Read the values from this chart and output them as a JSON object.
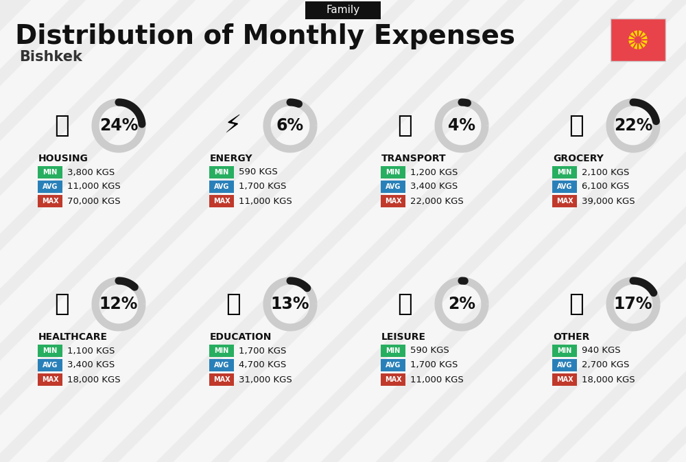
{
  "title": "Distribution of Monthly Expenses",
  "subtitle": "Bishkek",
  "tag": "Family",
  "bg_color": "#ececec",
  "stripe_color": "#ffffff",
  "categories": [
    {
      "name": "HOUSING",
      "pct": 24,
      "min": "3,800 KGS",
      "avg": "11,000 KGS",
      "max": "70,000 KGS"
    },
    {
      "name": "ENERGY",
      "pct": 6,
      "min": "590 KGS",
      "avg": "1,700 KGS",
      "max": "11,000 KGS"
    },
    {
      "name": "TRANSPORT",
      "pct": 4,
      "min": "1,200 KGS",
      "avg": "3,400 KGS",
      "max": "22,000 KGS"
    },
    {
      "name": "GROCERY",
      "pct": 22,
      "min": "2,100 KGS",
      "avg": "6,100 KGS",
      "max": "39,000 KGS"
    },
    {
      "name": "HEALTHCARE",
      "pct": 12,
      "min": "1,100 KGS",
      "avg": "3,400 KGS",
      "max": "18,000 KGS"
    },
    {
      "name": "EDUCATION",
      "pct": 13,
      "min": "1,700 KGS",
      "avg": "4,700 KGS",
      "max": "31,000 KGS"
    },
    {
      "name": "LEISURE",
      "pct": 2,
      "min": "590 KGS",
      "avg": "1,700 KGS",
      "max": "11,000 KGS"
    },
    {
      "name": "OTHER",
      "pct": 17,
      "min": "940 KGS",
      "avg": "2,700 KGS",
      "max": "18,000 KGS"
    }
  ],
  "color_min": "#27ae60",
  "color_avg": "#2980b9",
  "color_max": "#c0392b",
  "arc_color_filled": "#1a1a1a",
  "arc_color_empty": "#cccccc",
  "flag_color": "#e8424a",
  "title_fontsize": 28,
  "subtitle_fontsize": 15,
  "tag_fontsize": 11,
  "cat_fontsize": 10,
  "val_fontsize": 9.5,
  "pct_fontsize": 17,
  "badge_fontsize": 7
}
